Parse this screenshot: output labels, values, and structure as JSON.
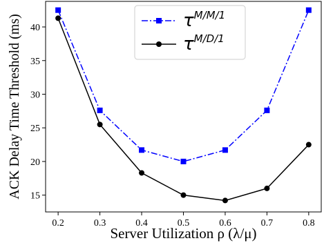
{
  "chart_data": {
    "type": "line",
    "title": "",
    "xlabel": "Server Utilization ρ (λ/μ)",
    "ylabel": "ACK Delay Time Threshold (ms)",
    "x": [
      0.2,
      0.3,
      0.4,
      0.5,
      0.6,
      0.7,
      0.8
    ],
    "xticks": [
      "0.2",
      "0.3",
      "0.4",
      "0.5",
      "0.6",
      "0.7",
      "0.8"
    ],
    "yticks": [
      "15",
      "20",
      "25",
      "30",
      "35",
      "40"
    ],
    "xlim": [
      0.17,
      0.83
    ],
    "ylim": [
      12.5,
      43.8
    ],
    "grid": false,
    "legend_position": "top-center",
    "series": [
      {
        "name": "τ^{M/M/1}",
        "name_base": "τ",
        "name_sup": "M/M/1",
        "values": [
          42.5,
          27.6,
          21.7,
          20.0,
          21.7,
          27.6,
          42.5
        ],
        "color": "#0000ff",
        "linestyle": "dashdot",
        "marker": "square"
      },
      {
        "name": "τ^{M/D/1}",
        "name_base": "τ",
        "name_sup": "M/D/1",
        "values": [
          41.3,
          25.5,
          18.3,
          15.0,
          14.2,
          16.0,
          22.5
        ],
        "color": "#000000",
        "linestyle": "solid",
        "marker": "circle"
      }
    ]
  }
}
